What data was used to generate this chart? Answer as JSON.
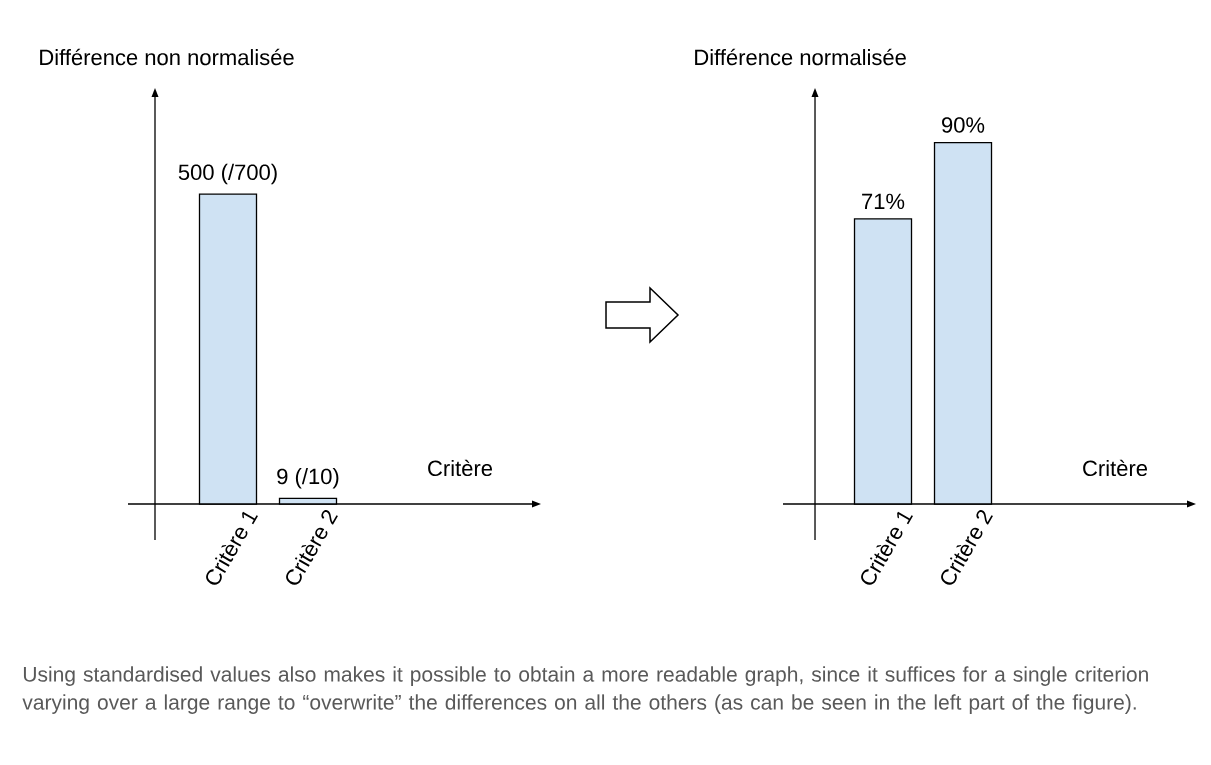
{
  "chart_data": [
    {
      "type": "bar",
      "ylabel": "Différence non normalisée",
      "xlabel": "Critère",
      "categories": [
        "Critère 1",
        "Critère 2"
      ],
      "values": [
        500,
        9
      ],
      "value_labels": [
        "500 (/700)",
        "9 (/10)"
      ],
      "color": "#cfe2f3",
      "tick_labels": "x"
    },
    {
      "type": "bar",
      "ylabel": "Différence normalisée",
      "xlabel": "Critère",
      "categories": [
        "Critère 1",
        "Critère 2"
      ],
      "values": [
        71,
        90
      ],
      "value_labels": [
        "71%",
        "90%"
      ],
      "color": "#cfe2f3",
      "tick_labels": "x"
    },
    {
      "type": "other",
      "annotations": [
        "Using standardised values also makes it possible to obtain a more readable graph, since it suffices for a single criterion varying over a large range to “overwrite” the differences on all the others (as can be seen in the left part of the figure)."
      ]
    }
  ]
}
